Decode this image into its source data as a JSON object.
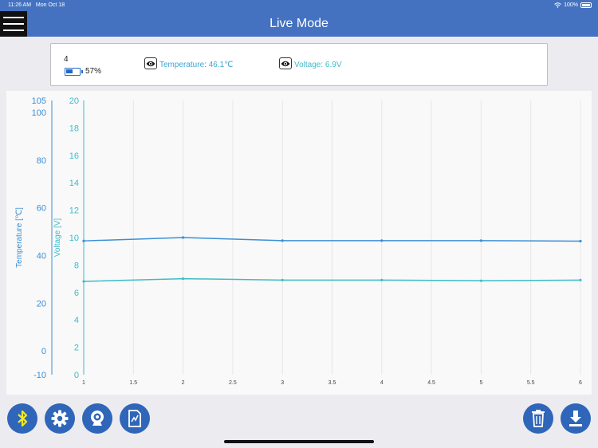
{
  "status": {
    "time": "11:26 AM",
    "date": "Mon Oct 18",
    "battery": "100%"
  },
  "header": {
    "title": "Live Mode"
  },
  "info": {
    "device_id": "4",
    "battery_pct": "57%",
    "temperature": "Temperature: 46.1℃",
    "voltage": "Voltage: 6.9V"
  },
  "colors": {
    "header": "#4472c0",
    "temperature": "#3a8fd6",
    "voltage": "#3dbcc9",
    "button": "#2f66b9",
    "bluetooth": "#f3ea1a"
  },
  "icons": [
    "menu-icon",
    "eye-icon",
    "bluetooth-icon",
    "gear-icon",
    "webcam-icon",
    "chart-report-icon",
    "trash-icon",
    "download-icon"
  ],
  "chart_data": {
    "type": "line",
    "x_ticks": [
      "1",
      "1.5",
      "2",
      "2.5",
      "3",
      "3.5",
      "4",
      "4.5",
      "5",
      "5.5",
      "6"
    ],
    "y_left_ticks": [
      "-10",
      "0",
      "20",
      "40",
      "60",
      "80",
      "100",
      "105"
    ],
    "y_right_ticks": [
      "0",
      "2",
      "4",
      "6",
      "8",
      "10",
      "12",
      "14",
      "16",
      "18",
      "20"
    ],
    "ylabel_left": "Temperature [℃]",
    "ylabel_right": "Voltage [V]",
    "xlim": [
      1,
      6
    ],
    "ylim_left": [
      -10,
      105
    ],
    "ylim_right": [
      0,
      20
    ],
    "grid": true,
    "series": [
      {
        "name": "Temperature",
        "axis": "left",
        "x": [
          1,
          2,
          3,
          4,
          5,
          6
        ],
        "values": [
          46.1,
          47.5,
          46.2,
          46.2,
          46.2,
          46.0
        ]
      },
      {
        "name": "Voltage",
        "axis": "right",
        "x": [
          1,
          2,
          3,
          4,
          5,
          6
        ],
        "values": [
          6.8,
          7.0,
          6.9,
          6.9,
          6.85,
          6.9
        ]
      }
    ]
  }
}
